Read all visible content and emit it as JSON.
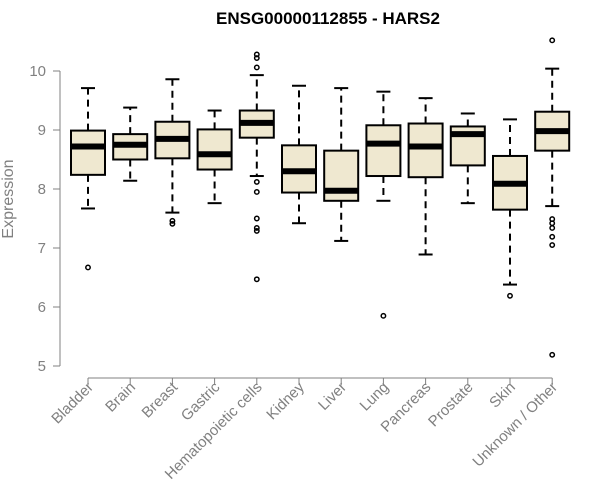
{
  "chart_data": {
    "type": "boxplot",
    "title": "ENSG00000112855 - HARS2",
    "xlabel": "",
    "ylabel": "Expression",
    "ylim": [
      5,
      10.5
    ],
    "yticks": [
      "5",
      "6",
      "7",
      "8",
      "9",
      "10"
    ],
    "grid": false,
    "box_fill": "#efe8d0",
    "line_color": "#000000",
    "axis_color": "#808080",
    "categories": [
      "Bladder",
      "Brain",
      "Breast",
      "Gastric",
      "Hematopoietic cells",
      "Kidney",
      "Liver",
      "Lung",
      "Pancreas",
      "Prostate",
      "Skin",
      "Unknown / Other"
    ],
    "boxes": [
      {
        "name": "Bladder",
        "whisker_low": 7.67,
        "q1": 8.24,
        "median": 8.72,
        "q3": 8.99,
        "whisker_high": 9.71,
        "outliers": [
          6.67
        ]
      },
      {
        "name": "Brain",
        "whisker_low": 8.14,
        "q1": 8.5,
        "median": 8.75,
        "q3": 8.93,
        "whisker_high": 9.38,
        "outliers": []
      },
      {
        "name": "Breast",
        "whisker_low": 7.6,
        "q1": 8.52,
        "median": 8.85,
        "q3": 9.14,
        "whisker_high": 9.86,
        "outliers": [
          7.46,
          7.41
        ]
      },
      {
        "name": "Gastric",
        "whisker_low": 7.76,
        "q1": 8.33,
        "median": 8.59,
        "q3": 9.01,
        "whisker_high": 9.33,
        "outliers": []
      },
      {
        "name": "Hematopoietic cells",
        "whisker_low": 8.22,
        "q1": 8.87,
        "median": 9.12,
        "q3": 9.33,
        "whisker_high": 9.93,
        "outliers": [
          10.28,
          10.22,
          10.06,
          8.12,
          7.95,
          7.5,
          7.34,
          7.29,
          6.47
        ]
      },
      {
        "name": "Kidney",
        "whisker_low": 7.42,
        "q1": 7.94,
        "median": 8.3,
        "q3": 8.74,
        "whisker_high": 9.75,
        "outliers": []
      },
      {
        "name": "Liver",
        "whisker_low": 7.12,
        "q1": 7.8,
        "median": 7.97,
        "q3": 8.65,
        "whisker_high": 9.71,
        "outliers": []
      },
      {
        "name": "Lung",
        "whisker_low": 7.8,
        "q1": 8.22,
        "median": 8.77,
        "q3": 9.08,
        "whisker_high": 9.65,
        "outliers": [
          5.85
        ]
      },
      {
        "name": "Pancreas",
        "whisker_low": 6.89,
        "q1": 8.2,
        "median": 8.72,
        "q3": 9.11,
        "whisker_high": 9.54,
        "outliers": []
      },
      {
        "name": "Prostate",
        "whisker_low": 7.76,
        "q1": 8.4,
        "median": 8.93,
        "q3": 9.06,
        "whisker_high": 9.28,
        "outliers": []
      },
      {
        "name": "Skin",
        "whisker_low": 6.38,
        "q1": 7.65,
        "median": 8.09,
        "q3": 8.56,
        "whisker_high": 9.18,
        "outliers": [
          6.19
        ]
      },
      {
        "name": "Unknown / Other",
        "whisker_low": 7.71,
        "q1": 8.65,
        "median": 8.98,
        "q3": 9.31,
        "whisker_high": 10.04,
        "outliers": [
          10.52,
          7.49,
          7.42,
          7.34,
          7.19,
          7.05,
          5.19
        ]
      }
    ]
  }
}
